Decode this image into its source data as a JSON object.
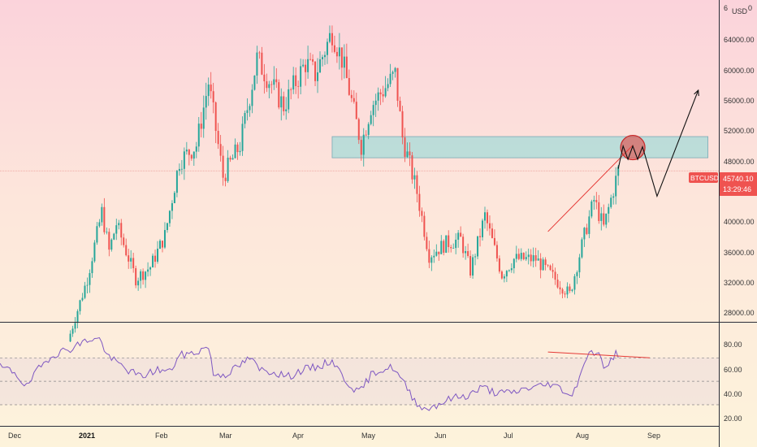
{
  "colors": {
    "up": "#26a69a",
    "down": "#ef5350",
    "rsi_line": "#7e57c2",
    "zone_fill": "#a7dbd8",
    "zone_stroke": "#79a9b5",
    "trendline": "#e53935",
    "last_price_bg": "#ef5350",
    "projection": "#111111"
  },
  "header": {
    "currency_label": "USD",
    "top_tick_partial": "6",
    "top_tick_partial_right": "0"
  },
  "price_axis": {
    "ticks": [
      "64000.00",
      "60000.00",
      "56000.00",
      "52000.00",
      "48000.00",
      "40000.00",
      "36000.00",
      "32000.00",
      "28000.00"
    ],
    "symbol": "BTCUSD",
    "last_price": "45740.10",
    "countdown": "13:29:46"
  },
  "rsi_axis": {
    "ticks": [
      "80.00",
      "60.00",
      "40.00",
      "20.00"
    ]
  },
  "time_axis": {
    "labels": [
      "Dec",
      "2021",
      "Feb",
      "Mar",
      "Apr",
      "May",
      "Jun",
      "Jul",
      "Aug",
      "Sep"
    ]
  },
  "chart_data": [
    {
      "type": "candlestick",
      "symbol": "BTCUSD",
      "interval": "1D",
      "ylim": [
        26500,
        67500
      ],
      "last_price": 45740.1,
      "anchors": [
        [
          "2020-12-25",
          24000
        ],
        [
          "2021-01-02",
          32000
        ],
        [
          "2021-01-08",
          40500
        ],
        [
          "2021-01-11",
          35500
        ],
        [
          "2021-01-14",
          39000
        ],
        [
          "2021-01-22",
          32000
        ],
        [
          "2021-01-28",
          33500
        ],
        [
          "2021-02-03",
          37500
        ],
        [
          "2021-02-09",
          47000
        ],
        [
          "2021-02-16",
          49000
        ],
        [
          "2021-02-21",
          57000
        ],
        [
          "2021-02-27",
          45000
        ],
        [
          "2021-03-06",
          49000
        ],
        [
          "2021-03-13",
          60000
        ],
        [
          "2021-03-24",
          54000
        ],
        [
          "2021-04-02",
          59500
        ],
        [
          "2021-04-06",
          58000
        ],
        [
          "2021-04-13",
          63500
        ],
        [
          "2021-04-17",
          60000
        ],
        [
          "2021-04-20",
          56000
        ],
        [
          "2021-04-25",
          49000
        ],
        [
          "2021-04-29",
          54000
        ],
        [
          "2021-05-09",
          58000
        ],
        [
          "2021-05-12",
          50000
        ],
        [
          "2021-05-18",
          43000
        ],
        [
          "2021-05-23",
          35000
        ],
        [
          "2021-05-30",
          36500
        ],
        [
          "2021-06-05",
          37000
        ],
        [
          "2021-06-09",
          33000
        ],
        [
          "2021-06-15",
          40000
        ],
        [
          "2021-06-22",
          32500
        ],
        [
          "2021-06-27",
          34500
        ],
        [
          "2021-07-06",
          34500
        ],
        [
          "2021-07-20",
          30000
        ],
        [
          "2021-07-26",
          37500
        ],
        [
          "2021-07-30",
          42000
        ],
        [
          "2021-08-03",
          38500
        ],
        [
          "2021-08-09",
          45800
        ]
      ],
      "resistance_zone": {
        "x_start": "2021-04-13",
        "x_end": "2021-09-15",
        "y_low": 47400,
        "y_high": 50100
      },
      "rising_trendline": {
        "x": [
          "2021-07-11",
          "2021-08-15"
        ],
        "y": [
          38000,
          49000
        ]
      },
      "highlight_circle": {
        "x": "2021-08-15",
        "y": 48700
      },
      "projection_path": {
        "x": [
          "2021-08-09",
          "2021-08-11",
          "2021-08-13",
          "2021-08-15",
          "2021-08-17",
          "2021-08-19",
          "2021-08-25",
          "2021-09-11"
        ],
        "y": [
          46000,
          48900,
          47200,
          48900,
          47200,
          48800,
          42500,
          56000
        ]
      }
    },
    {
      "type": "line",
      "name": "RSI",
      "ylim": [
        12,
        100
      ],
      "bands": [
        30,
        50,
        70
      ],
      "anchors": [
        [
          "2020-11-27",
          62
        ],
        [
          "2020-12-03",
          58
        ],
        [
          "2020-12-08",
          45
        ],
        [
          "2020-12-12",
          58
        ],
        [
          "2020-12-18",
          72
        ],
        [
          "2020-12-26",
          78
        ],
        [
          "2021-01-03",
          86
        ],
        [
          "2021-01-07",
          86
        ],
        [
          "2021-01-11",
          70
        ],
        [
          "2021-01-15",
          65
        ],
        [
          "2021-01-20",
          58
        ],
        [
          "2021-01-24",
          54
        ],
        [
          "2021-01-31",
          60
        ],
        [
          "2021-02-05",
          58
        ],
        [
          "2021-02-09",
          72
        ],
        [
          "2021-02-15",
          74
        ],
        [
          "2021-02-21",
          80
        ],
        [
          "2021-02-23",
          56
        ],
        [
          "2021-02-28",
          56
        ],
        [
          "2021-03-05",
          62
        ],
        [
          "2021-03-10",
          70
        ],
        [
          "2021-03-14",
          60
        ],
        [
          "2021-03-20",
          58
        ],
        [
          "2021-03-26",
          54
        ],
        [
          "2021-04-01",
          60
        ],
        [
          "2021-04-07",
          62
        ],
        [
          "2021-04-13",
          68
        ],
        [
          "2021-04-18",
          52
        ],
        [
          "2021-04-24",
          40
        ],
        [
          "2021-04-30",
          58
        ],
        [
          "2021-05-08",
          62
        ],
        [
          "2021-05-12",
          50
        ],
        [
          "2021-05-17",
          34
        ],
        [
          "2021-05-21",
          26
        ],
        [
          "2021-05-26",
          30
        ],
        [
          "2021-06-02",
          36
        ],
        [
          "2021-06-08",
          38
        ],
        [
          "2021-06-14",
          45
        ],
        [
          "2021-06-20",
          40
        ],
        [
          "2021-06-26",
          40
        ],
        [
          "2021-07-02",
          44
        ],
        [
          "2021-07-08",
          46
        ],
        [
          "2021-07-12",
          48
        ],
        [
          "2021-07-18",
          42
        ],
        [
          "2021-07-21",
          37
        ],
        [
          "2021-07-27",
          72
        ],
        [
          "2021-07-31",
          76
        ],
        [
          "2021-08-04",
          60
        ],
        [
          "2021-08-08",
          74
        ],
        [
          "2021-08-09",
          73
        ]
      ],
      "divergence_line": {
        "x": [
          "2021-07-11",
          "2021-08-22"
        ],
        "y": [
          75,
          70
        ]
      }
    }
  ]
}
